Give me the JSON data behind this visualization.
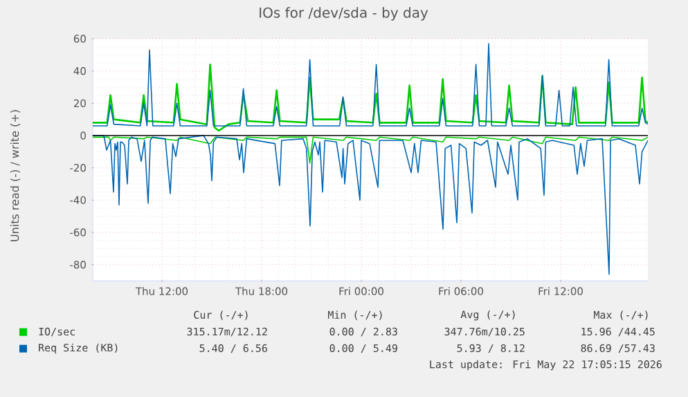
{
  "chart_data": {
    "type": "line",
    "title": "IOs for /dev/sda - by day",
    "ylabel": "Units read (-) / write (+)",
    "xlim": [
      "2026-05-21T07:50",
      "2026-05-22T17:15"
    ],
    "ylim": [
      -90,
      60
    ],
    "xticks": [
      {
        "value": "2026-05-21T12:00",
        "label": "Thu 12:00"
      },
      {
        "value": "2026-05-21T18:00",
        "label": "Thu 18:00"
      },
      {
        "value": "2026-05-22T00:00",
        "label": "Fri 00:00"
      },
      {
        "value": "2026-05-22T06:00",
        "label": "Fri 06:00"
      },
      {
        "value": "2026-05-22T12:00",
        "label": "Fri 12:00"
      }
    ],
    "yticks": [
      -80,
      -60,
      -40,
      -20,
      0,
      20,
      40,
      60
    ],
    "grid": true,
    "legend": "bottom",
    "marker": "none",
    "line_style": "solid",
    "ref_lines": [
      {
        "axis": "y",
        "value": 0,
        "color": "#000000"
      }
    ],
    "series": [
      {
        "name": "IO/sec",
        "color": "#00cc00",
        "x": [
          "2026-05-21T07:50",
          "2026-05-21T08:42",
          "2026-05-21T08:54",
          "2026-05-21T09:06",
          "2026-05-21T10:42",
          "2026-05-21T10:54",
          "2026-05-21T11:06",
          "2026-05-21T12:42",
          "2026-05-21T12:54",
          "2026-05-21T13:06",
          "2026-05-21T14:42",
          "2026-05-21T14:54",
          "2026-05-21T15:10",
          "2026-05-21T15:25",
          "2026-05-21T16:00",
          "2026-05-21T16:42",
          "2026-05-21T16:54",
          "2026-05-21T17:10",
          "2026-05-21T18:42",
          "2026-05-21T18:54",
          "2026-05-21T19:06",
          "2026-05-21T20:42",
          "2026-05-21T20:54",
          "2026-05-21T21:06",
          "2026-05-21T22:40",
          "2026-05-21T22:54",
          "2026-05-21T23:06",
          "2026-05-22T00:42",
          "2026-05-22T00:54",
          "2026-05-22T01:06",
          "2026-05-22T02:42",
          "2026-05-22T02:54",
          "2026-05-22T03:06",
          "2026-05-22T04:42",
          "2026-05-22T04:54",
          "2026-05-22T05:06",
          "2026-05-22T06:42",
          "2026-05-22T06:54",
          "2026-05-22T07:06",
          "2026-05-22T08:42",
          "2026-05-22T08:54",
          "2026-05-22T09:06",
          "2026-05-22T10:42",
          "2026-05-22T10:54",
          "2026-05-22T11:06",
          "2026-05-22T12:42",
          "2026-05-22T12:54",
          "2026-05-22T13:06",
          "2026-05-22T14:42",
          "2026-05-22T14:54",
          "2026-05-22T15:06",
          "2026-05-22T16:42",
          "2026-05-22T16:54",
          "2026-05-22T17:06",
          "2026-05-22T17:15"
        ],
        "values": [
          8,
          8,
          25,
          10,
          8,
          25,
          9,
          8,
          32,
          10,
          7,
          44,
          5,
          3,
          7,
          8,
          26,
          9,
          8,
          28,
          9,
          8,
          36,
          10,
          10,
          23,
          9,
          8,
          26,
          8,
          8,
          31,
          8,
          8,
          35,
          9,
          8,
          25,
          9,
          8,
          31,
          9,
          8,
          37,
          8,
          7,
          30,
          8,
          8,
          33,
          8,
          8,
          36,
          9,
          8
        ]
      },
      {
        "name": "Req Size (KB)",
        "color": "#0066b3",
        "x": [
          "2026-05-21T07:50",
          "2026-05-21T08:42",
          "2026-05-21T08:54",
          "2026-05-21T09:06",
          "2026-05-21T10:42",
          "2026-05-21T10:54",
          "2026-05-21T11:06",
          "2026-05-21T11:15",
          "2026-05-21T11:27",
          "2026-05-21T12:42",
          "2026-05-21T12:54",
          "2026-05-21T13:06",
          "2026-05-21T14:42",
          "2026-05-21T14:54",
          "2026-05-21T15:06",
          "2026-05-21T16:42",
          "2026-05-21T16:54",
          "2026-05-21T17:06",
          "2026-05-21T18:42",
          "2026-05-21T18:54",
          "2026-05-21T19:06",
          "2026-05-21T20:42",
          "2026-05-21T20:54",
          "2026-05-21T21:06",
          "2026-05-21T22:42",
          "2026-05-21T22:54",
          "2026-05-21T23:06",
          "2026-05-22T00:42",
          "2026-05-22T00:54",
          "2026-05-22T01:06",
          "2026-05-22T02:42",
          "2026-05-22T02:54",
          "2026-05-22T03:06",
          "2026-05-22T04:42",
          "2026-05-22T04:54",
          "2026-05-22T05:06",
          "2026-05-22T06:42",
          "2026-05-22T06:54",
          "2026-05-22T07:06",
          "2026-05-22T07:30",
          "2026-05-22T07:40",
          "2026-05-22T07:51",
          "2026-05-22T08:42",
          "2026-05-22T08:54",
          "2026-05-22T09:06",
          "2026-05-22T10:42",
          "2026-05-22T10:54",
          "2026-05-22T11:06",
          "2026-05-22T11:42",
          "2026-05-22T11:54",
          "2026-05-22T12:06",
          "2026-05-22T12:33",
          "2026-05-22T12:45",
          "2026-05-22T12:57",
          "2026-05-22T14:42",
          "2026-05-22T14:54",
          "2026-05-22T15:06",
          "2026-05-22T16:42",
          "2026-05-22T16:54",
          "2026-05-22T17:06",
          "2026-05-22T17:15"
        ],
        "values": [
          6,
          6,
          19,
          7,
          6,
          20,
          6,
          53,
          6,
          6,
          20,
          6,
          6,
          28,
          6,
          6,
          29,
          6,
          6,
          18,
          6,
          6,
          47,
          6,
          6,
          24,
          6,
          6,
          44,
          6,
          6,
          17,
          6,
          6,
          23,
          6,
          6,
          44,
          6,
          6,
          57,
          6,
          6,
          17,
          6,
          6,
          37,
          6,
          6,
          28,
          6,
          6,
          30,
          6,
          6,
          47,
          6,
          6,
          17,
          8,
          7
        ]
      },
      {
        "color": "#00cc00",
        "x": [
          "2026-05-21T07:50",
          "2026-05-21T08:48",
          "2026-05-21T08:54",
          "2026-05-21T09:06",
          "2026-05-21T10:54",
          "2026-05-21T11:06",
          "2026-05-21T12:54",
          "2026-05-21T13:06",
          "2026-05-21T14:54",
          "2026-05-21T15:12",
          "2026-05-21T16:54",
          "2026-05-21T17:06",
          "2026-05-21T18:54",
          "2026-05-21T19:06",
          "2026-05-21T20:42",
          "2026-05-21T20:54",
          "2026-05-21T21:06",
          "2026-05-21T22:54",
          "2026-05-21T23:06",
          "2026-05-22T00:54",
          "2026-05-22T01:06",
          "2026-05-22T02:54",
          "2026-05-22T03:06",
          "2026-05-22T04:54",
          "2026-05-22T05:06",
          "2026-05-22T06:54",
          "2026-05-22T07:06",
          "2026-05-22T08:54",
          "2026-05-22T09:06",
          "2026-05-22T10:54",
          "2026-05-22T11:06",
          "2026-05-22T12:54",
          "2026-05-22T13:06",
          "2026-05-22T14:54",
          "2026-05-22T15:06",
          "2026-05-22T16:54",
          "2026-05-22T17:15"
        ],
        "values": [
          -1,
          -1,
          -3,
          -1,
          -2,
          -1,
          -3,
          -1,
          -5,
          -1,
          -3,
          -1,
          -2,
          -1,
          -1,
          -17,
          -1,
          -3,
          -1,
          -3,
          -1,
          -3,
          -1,
          -4,
          -1,
          -2,
          -1,
          -3,
          -1,
          -5,
          -1,
          -3,
          -1,
          -3,
          -1,
          -3,
          -1
        ]
      },
      {
        "color": "#0066b3",
        "x": [
          "2026-05-21T07:50",
          "2026-05-21T08:30",
          "2026-05-21T08:40",
          "2026-05-21T08:54",
          "2026-05-21T09:05",
          "2026-05-21T09:10",
          "2026-05-21T09:15",
          "2026-05-21T09:20",
          "2026-05-21T09:25",
          "2026-05-21T09:30",
          "2026-05-21T09:35",
          "2026-05-21T09:45",
          "2026-05-21T09:55",
          "2026-05-21T10:00",
          "2026-05-21T10:10",
          "2026-05-21T10:30",
          "2026-05-21T10:45",
          "2026-05-21T10:57",
          "2026-05-21T11:10",
          "2026-05-21T11:18",
          "2026-05-21T11:25",
          "2026-05-21T12:12",
          "2026-05-21T12:30",
          "2026-05-21T12:39",
          "2026-05-21T12:50",
          "2026-05-21T13:00",
          "2026-05-21T14:30",
          "2026-05-21T14:48",
          "2026-05-21T14:55",
          "2026-05-21T15:00",
          "2026-05-21T15:06",
          "2026-05-21T15:18",
          "2026-05-21T16:30",
          "2026-05-21T16:40",
          "2026-05-21T16:48",
          "2026-05-21T16:55",
          "2026-05-21T17:06",
          "2026-05-21T18:48",
          "2026-05-21T19:05",
          "2026-05-21T19:12",
          "2026-05-21T20:30",
          "2026-05-21T20:42",
          "2026-05-21T20:55",
          "2026-05-21T21:03",
          "2026-05-21T21:12",
          "2026-05-21T21:25",
          "2026-05-21T21:30",
          "2026-05-21T21:40",
          "2026-05-21T21:48",
          "2026-05-21T22:30",
          "2026-05-21T22:50",
          "2026-05-21T22:54",
          "2026-05-21T23:00",
          "2026-05-21T23:12",
          "2026-05-21T23:30",
          "2026-05-21T23:55",
          "2026-05-22T00:00",
          "2026-05-22T00:30",
          "2026-05-22T01:00",
          "2026-05-22T01:06",
          "2026-05-22T02:30",
          "2026-05-22T03:00",
          "2026-05-22T03:12",
          "2026-05-22T03:25",
          "2026-05-22T03:36",
          "2026-05-22T04:30",
          "2026-05-22T04:55",
          "2026-05-22T05:03",
          "2026-05-22T05:24",
          "2026-05-22T05:45",
          "2026-05-22T05:54",
          "2026-05-22T06:18",
          "2026-05-22T06:40",
          "2026-05-22T06:48",
          "2026-05-22T07:12",
          "2026-05-22T07:36",
          "2026-05-22T08:05",
          "2026-05-22T08:12",
          "2026-05-22T08:50",
          "2026-05-22T09:00",
          "2026-05-22T09:25",
          "2026-05-22T09:30",
          "2026-05-22T10:00",
          "2026-05-22T10:48",
          "2026-05-22T11:00",
          "2026-05-22T11:06",
          "2026-05-22T11:30",
          "2026-05-22T12:48",
          "2026-05-22T13:00",
          "2026-05-22T13:12",
          "2026-05-22T13:25",
          "2026-05-22T13:36",
          "2026-05-22T14:30",
          "2026-05-22T14:55",
          "2026-05-22T15:00",
          "2026-05-22T15:30",
          "2026-05-22T16:30",
          "2026-05-22T16:45",
          "2026-05-22T16:54",
          "2026-05-22T17:15"
        ],
        "values": [
          0,
          0,
          -9,
          -3,
          -35,
          -5,
          -9,
          -4,
          -43,
          -4,
          -4,
          -6,
          -30,
          -3,
          -1,
          -2,
          -16,
          -3,
          -42,
          -3,
          -1,
          -2,
          -36,
          -5,
          -13,
          -2,
          0,
          -5,
          -12,
          -28,
          -4,
          -1,
          -2,
          -15,
          -5,
          -23,
          -2,
          -5,
          -31,
          -3,
          -2,
          -8,
          -56,
          -10,
          -4,
          -12,
          -4,
          -35,
          -3,
          -4,
          -26,
          -8,
          -30,
          -5,
          -3,
          -40,
          -3,
          -5,
          -32,
          -3,
          -3,
          -23,
          -5,
          -23,
          -3,
          -4,
          -58,
          -8,
          -6,
          -54,
          -5,
          -8,
          -48,
          -4,
          -6,
          -3,
          -32,
          -4,
          -24,
          -6,
          -40,
          -4,
          -2,
          -8,
          -37,
          -4,
          -3,
          -6,
          -24,
          -5,
          -19,
          -3,
          -2,
          -86,
          -3,
          -2,
          -6,
          -30,
          -10,
          -3
        ]
      }
    ],
    "annotations": [
      "Cur (-/+)",
      "Min (-/+)",
      "Avg (-/+)",
      "Max (-/+)",
      "315.17m/12.12",
      "0.00 / 2.83",
      "347.76m/10.25",
      "15.96 /44.45",
      "5.40 / 6.56",
      "0.00 / 5.49",
      "5.93 / 8.12",
      "86.69 /57.43",
      "Last update: Fri May 22 17:05:15 2026"
    ]
  }
}
